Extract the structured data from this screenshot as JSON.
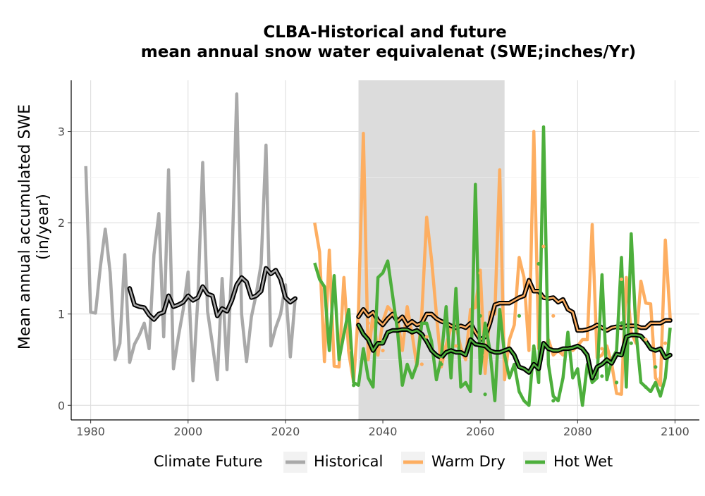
{
  "chart_data": {
    "type": "line",
    "title_lines": [
      "CLBA-Historical and future",
      "mean annual snow water equivalenat (SWE;inches/Yr)"
    ],
    "xlabel": "",
    "ylabel_lines": [
      "Mean annual accumulated SWE",
      "(in/year)"
    ],
    "xlim": [
      1976,
      2105
    ],
    "ylim": [
      -0.16,
      3.56
    ],
    "x_ticks": [
      1980,
      2000,
      2020,
      2040,
      2060,
      2080,
      2100
    ],
    "x_tick_labels": [
      "1980",
      "2000",
      "2020",
      "2040",
      "2060",
      "2080",
      "2100"
    ],
    "y_ticks": [
      0,
      1,
      2,
      3
    ],
    "y_tick_labels": [
      "0",
      "1",
      "2",
      "3"
    ],
    "grid": true,
    "shaded_period": {
      "x_start": 2035,
      "x_end": 2065,
      "color": "#dcdcdc"
    },
    "legend": {
      "title": "Climate Future",
      "position": "bottom",
      "entries": [
        {
          "label": "Historical",
          "color": "#a9a9a9"
        },
        {
          "label": "Warm Dry",
          "color": "#fdae61"
        },
        {
          "label": "Hot Wet",
          "color": "#4daf3c"
        }
      ]
    },
    "series": [
      {
        "name": "Historical",
        "color": "#a9a9a9",
        "x": [
          1979,
          1980,
          1981,
          1982,
          1983,
          1984,
          1985,
          1986,
          1987,
          1988,
          1989,
          1990,
          1991,
          1992,
          1993,
          1994,
          1995,
          1996,
          1997,
          1998,
          1999,
          2000,
          2001,
          2002,
          2003,
          2004,
          2005,
          2006,
          2007,
          2008,
          2009,
          2010,
          2011,
          2012,
          2013,
          2014,
          2015,
          2016,
          2017,
          2018,
          2019,
          2020,
          2021,
          2022
        ],
        "values": [
          2.62,
          1.02,
          1.01,
          1.52,
          1.93,
          1.45,
          0.5,
          0.68,
          1.65,
          0.47,
          0.67,
          0.77,
          0.9,
          0.62,
          1.65,
          2.1,
          0.75,
          2.58,
          0.4,
          0.75,
          1.05,
          1.46,
          0.27,
          1.16,
          2.66,
          1.03,
          0.67,
          0.28,
          1.39,
          0.39,
          1.55,
          3.41,
          1.0,
          0.48,
          0.97,
          1.22,
          1.55,
          2.85,
          0.65,
          0.85,
          1.0,
          1.32,
          0.53,
          1.17
        ]
      },
      {
        "name": "Historical rolling mean",
        "color": "#000000",
        "x": [
          1988,
          1989,
          1990,
          1991,
          1992,
          1993,
          1994,
          1995,
          1996,
          1997,
          1998,
          1999,
          2000,
          2001,
          2002,
          2003,
          2004,
          2005,
          2006,
          2007,
          2008,
          2009,
          2010,
          2011,
          2012,
          2013,
          2014,
          2015,
          2016,
          2017,
          2018,
          2019,
          2020,
          2021,
          2022
        ],
        "values": [
          1.28,
          1.1,
          1.08,
          1.07,
          0.99,
          0.94,
          1.0,
          1.02,
          1.2,
          1.08,
          1.1,
          1.13,
          1.2,
          1.15,
          1.18,
          1.3,
          1.22,
          1.2,
          0.98,
          1.06,
          1.03,
          1.15,
          1.32,
          1.4,
          1.35,
          1.18,
          1.2,
          1.25,
          1.5,
          1.44,
          1.48,
          1.38,
          1.18,
          1.13,
          1.17
        ]
      },
      {
        "name": "Warm Dry",
        "color": "#fdae61",
        "x": [
          2026,
          2027,
          2028,
          2029,
          2030,
          2031,
          2032,
          2033,
          2034,
          2035,
          2036,
          2037,
          2038,
          2039,
          2040,
          2041,
          2042,
          2043,
          2044,
          2045,
          2046,
          2047,
          2048,
          2049,
          2050,
          2051,
          2052,
          2053,
          2054,
          2055,
          2056,
          2057,
          2058,
          2059,
          2060,
          2061,
          2062,
          2063,
          2064,
          2065,
          2066,
          2067,
          2068,
          2069,
          2070,
          2071,
          2072,
          2073,
          2074,
          2075,
          2076,
          2077,
          2078,
          2079,
          2080,
          2081,
          2082,
          2083,
          2084,
          2085,
          2086,
          2087,
          2088,
          2089,
          2090,
          2091,
          2092,
          2093,
          2094,
          2095,
          2096,
          2097,
          2098,
          2099
        ],
        "values": [
          2.0,
          1.68,
          0.48,
          1.7,
          0.43,
          0.42,
          1.4,
          0.58,
          0.25,
          1.05,
          2.98,
          0.5,
          1.02,
          0.55,
          0.92,
          1.08,
          1.02,
          0.95,
          0.6,
          1.08,
          0.78,
          0.43,
          1.0,
          2.06,
          1.6,
          1.0,
          0.42,
          0.66,
          0.85,
          0.88,
          0.63,
          0.5,
          1.05,
          1.07,
          1.48,
          0.35,
          1.02,
          1.0,
          2.58,
          0.28,
          0.72,
          0.88,
          1.62,
          1.4,
          0.6,
          3.0,
          0.62,
          0.63,
          0.72,
          0.55,
          0.6,
          0.55,
          0.66,
          0.6,
          0.65,
          0.72,
          0.72,
          1.98,
          0.52,
          0.55,
          0.65,
          0.45,
          0.13,
          0.12,
          1.4,
          0.8,
          0.68,
          1.36,
          1.12,
          1.11,
          0.3,
          0.22,
          1.81,
          0.95
        ]
      },
      {
        "name": "Warm Dry rolling mean",
        "color": "#000000",
        "x": [
          2035,
          2036,
          2037,
          2038,
          2039,
          2040,
          2041,
          2042,
          2043,
          2044,
          2045,
          2046,
          2047,
          2048,
          2049,
          2050,
          2051,
          2052,
          2053,
          2054,
          2055,
          2056,
          2057,
          2058,
          2059,
          2060,
          2061,
          2062,
          2063,
          2064,
          2065,
          2066,
          2067,
          2068,
          2069,
          2070,
          2071,
          2072,
          2073,
          2074,
          2075,
          2076,
          2077,
          2078,
          2079,
          2080,
          2081,
          2082,
          2083,
          2084,
          2085,
          2086,
          2087,
          2088,
          2089,
          2090,
          2091,
          2092,
          2093,
          2094,
          2095,
          2096,
          2097,
          2098,
          2099
        ],
        "values": [
          0.97,
          1.05,
          0.98,
          1.02,
          0.93,
          0.88,
          0.95,
          1.0,
          0.92,
          0.97,
          0.88,
          0.92,
          0.88,
          0.9,
          1.0,
          1.0,
          0.95,
          0.92,
          0.9,
          0.87,
          0.85,
          0.87,
          0.85,
          0.9,
          0.8,
          0.72,
          0.75,
          0.9,
          1.1,
          1.12,
          1.12,
          1.12,
          1.15,
          1.18,
          1.2,
          1.37,
          1.25,
          1.25,
          1.18,
          1.17,
          1.18,
          1.13,
          1.16,
          1.05,
          1.02,
          0.82,
          0.82,
          0.83,
          0.85,
          0.88,
          0.85,
          0.82,
          0.85,
          0.86,
          0.85,
          0.87,
          0.87,
          0.87,
          0.85,
          0.85,
          0.9,
          0.9,
          0.9,
          0.93,
          0.93
        ]
      },
      {
        "name": "Hot Wet",
        "color": "#4daf3c",
        "x": [
          2026,
          2027,
          2028,
          2029,
          2030,
          2031,
          2032,
          2033,
          2034,
          2035,
          2036,
          2037,
          2038,
          2039,
          2040,
          2041,
          2042,
          2043,
          2044,
          2045,
          2046,
          2047,
          2048,
          2049,
          2050,
          2051,
          2052,
          2053,
          2054,
          2055,
          2056,
          2057,
          2058,
          2059,
          2060,
          2061,
          2062,
          2063,
          2064,
          2065,
          2066,
          2067,
          2068,
          2069,
          2070,
          2071,
          2072,
          2073,
          2074,
          2075,
          2076,
          2077,
          2078,
          2079,
          2080,
          2081,
          2082,
          2083,
          2084,
          2085,
          2086,
          2087,
          2088,
          2089,
          2090,
          2091,
          2092,
          2093,
          2094,
          2095,
          2096,
          2097,
          2098,
          2099
        ],
        "values": [
          1.56,
          1.38,
          1.3,
          0.6,
          1.42,
          0.5,
          0.78,
          1.05,
          0.25,
          0.22,
          0.62,
          0.3,
          0.2,
          1.4,
          1.45,
          1.58,
          1.2,
          0.82,
          0.22,
          0.45,
          0.3,
          0.45,
          0.9,
          0.9,
          0.7,
          0.28,
          0.52,
          1.08,
          0.3,
          1.28,
          0.2,
          0.25,
          0.15,
          2.42,
          0.35,
          0.9,
          0.6,
          0.05,
          1.05,
          0.55,
          0.3,
          0.45,
          0.15,
          0.05,
          0.0,
          0.65,
          0.25,
          3.05,
          0.45,
          0.1,
          0.05,
          0.3,
          0.8,
          0.3,
          0.4,
          0.0,
          0.45,
          0.25,
          0.3,
          1.43,
          0.28,
          0.5,
          0.6,
          1.62,
          0.2,
          1.88,
          0.8,
          0.25,
          0.2,
          0.15,
          0.25,
          0.1,
          0.3,
          0.85
        ]
      },
      {
        "name": "Hot Wet rolling mean",
        "color": "#000000",
        "x": [
          2035,
          2036,
          2037,
          2038,
          2039,
          2040,
          2041,
          2042,
          2043,
          2044,
          2045,
          2046,
          2047,
          2048,
          2049,
          2050,
          2051,
          2052,
          2053,
          2054,
          2055,
          2056,
          2057,
          2058,
          2059,
          2060,
          2061,
          2062,
          2063,
          2064,
          2065,
          2066,
          2067,
          2068,
          2069,
          2070,
          2071,
          2072,
          2073,
          2074,
          2075,
          2076,
          2077,
          2078,
          2079,
          2080,
          2081,
          2082,
          2083,
          2084,
          2085,
          2086,
          2087,
          2088,
          2089,
          2090,
          2091,
          2092,
          2093,
          2094,
          2095,
          2096,
          2097,
          2098,
          2099
        ],
        "values": [
          0.88,
          0.78,
          0.72,
          0.6,
          0.68,
          0.68,
          0.8,
          0.82,
          0.82,
          0.83,
          0.83,
          0.8,
          0.82,
          0.78,
          0.7,
          0.6,
          0.55,
          0.52,
          0.58,
          0.6,
          0.58,
          0.58,
          0.55,
          0.72,
          0.67,
          0.66,
          0.65,
          0.6,
          0.58,
          0.58,
          0.6,
          0.62,
          0.55,
          0.42,
          0.4,
          0.36,
          0.45,
          0.4,
          0.68,
          0.62,
          0.6,
          0.6,
          0.62,
          0.62,
          0.63,
          0.65,
          0.62,
          0.55,
          0.3,
          0.42,
          0.45,
          0.5,
          0.46,
          0.56,
          0.55,
          0.75,
          0.77,
          0.77,
          0.76,
          0.7,
          0.62,
          0.6,
          0.62,
          0.52,
          0.55
        ]
      }
    ],
    "points": [
      {
        "series": "Warm Dry",
        "x": [
          2028,
          2033,
          2037,
          2040,
          2048,
          2049,
          2052,
          2055,
          2060,
          2061,
          2070,
          2071,
          2073,
          2075,
          2085,
          2089,
          2094,
          2097,
          2098
        ],
        "values": [
          0.62,
          0.6,
          0.9,
          0.6,
          0.45,
          0.75,
          0.5,
          0.65,
          1.45,
          0.55,
          0.9,
          0.62,
          1.74,
          0.98,
          0.62,
          1.38,
          0.72,
          0.3,
          0.68
        ]
      },
      {
        "series": "Hot Wet",
        "x": [
          2034,
          2040,
          2044,
          2052,
          2060,
          2061,
          2068,
          2071,
          2072,
          2075,
          2085,
          2088,
          2089,
          2091,
          2094,
          2096
        ],
        "values": [
          0.22,
          0.7,
          0.26,
          0.45,
          0.98,
          0.12,
          0.98,
          0.62,
          1.55,
          0.05,
          0.32,
          0.25,
          0.9,
          0.68,
          0.2,
          0.42
        ]
      }
    ]
  }
}
